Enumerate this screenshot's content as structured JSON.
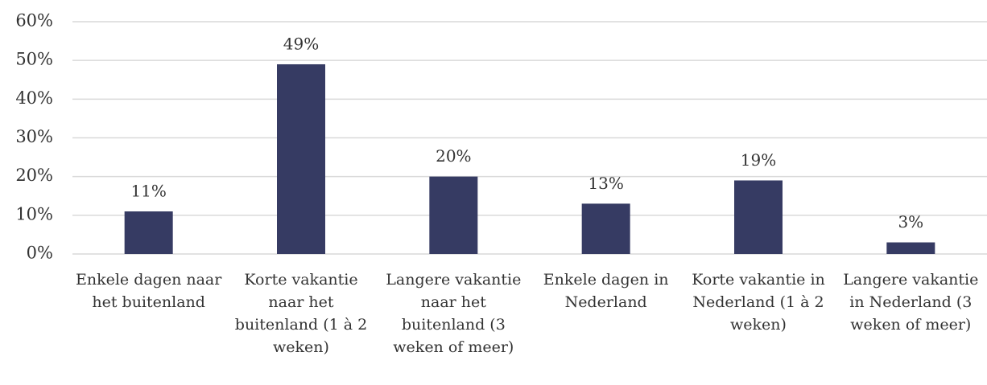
{
  "chart_data": {
    "type": "bar",
    "categories": [
      "Enkele dagen naar het buitenland",
      "Korte vakantie naar het buitenland (1 à 2 weken)",
      "Langere vakantie naar het buitenland (3 weken of meer)",
      "Enkele dagen in Nederland",
      "Korte vakantie in Nederland (1 à 2 weken)",
      "Langere vakantie in Nederland (3 weken of meer)"
    ],
    "values": [
      11,
      49,
      20,
      13,
      19,
      3
    ],
    "value_labels": [
      "11%",
      "49%",
      "20%",
      "13%",
      "19%",
      "3%"
    ],
    "color": "#363b63",
    "ylim": [
      0,
      60
    ],
    "yticks": [
      {
        "value": 0,
        "label": "0%"
      },
      {
        "value": 10,
        "label": "10%"
      },
      {
        "value": 20,
        "label": "20%"
      },
      {
        "value": 30,
        "label": "30%"
      },
      {
        "value": 40,
        "label": "40%"
      },
      {
        "value": 50,
        "label": "50%"
      },
      {
        "value": 60,
        "label": "60%"
      }
    ],
    "grid": true
  }
}
